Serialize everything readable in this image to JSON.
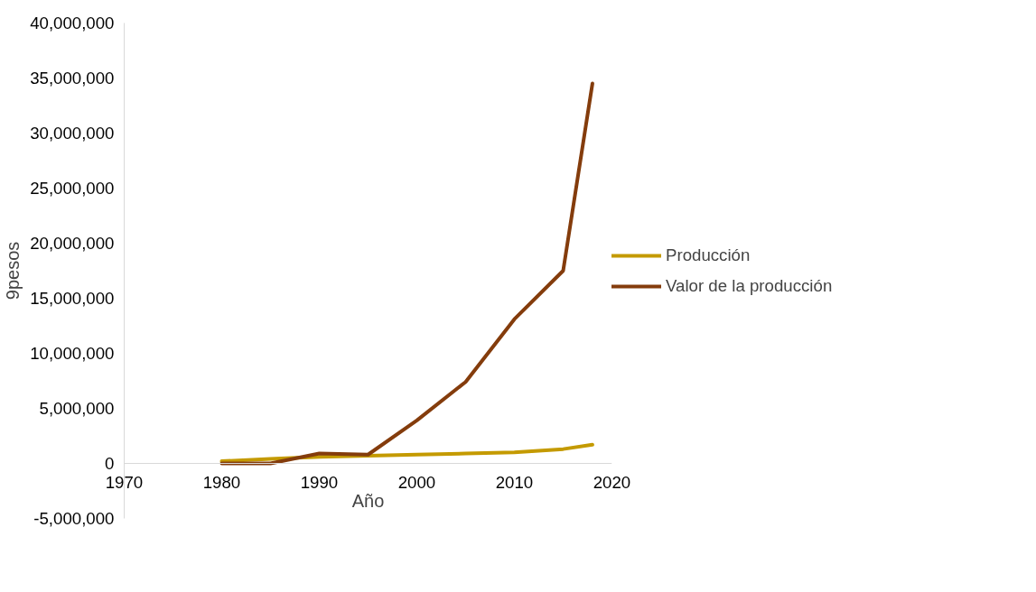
{
  "chart_data": {
    "type": "line",
    "xlabel": "Año",
    "ylabel": "9pesos",
    "x": [
      1980,
      1985,
      1990,
      1995,
      2000,
      2005,
      2010,
      2015,
      2018
    ],
    "series": [
      {
        "name": "Producción",
        "color": "#c49a00",
        "values": [
          200000,
          400000,
          600000,
          700000,
          800000,
          900000,
          1000000,
          1300000,
          1700000
        ]
      },
      {
        "name": "Valor de la producción",
        "color": "#843c0c",
        "values": [
          0,
          0,
          900000,
          800000,
          3900000,
          7400000,
          13100000,
          17500000,
          34500000
        ]
      }
    ],
    "xlim": [
      1970,
      2020
    ],
    "xticks": [
      1970,
      1980,
      1990,
      2000,
      2010,
      2020
    ],
    "ylim": [
      -5000000,
      40000000
    ],
    "yticks": [
      {
        "value": -5000000,
        "label": "-5,000,000"
      },
      {
        "value": 0,
        "label": "0"
      },
      {
        "value": 5000000,
        "label": "5,000,000"
      },
      {
        "value": 10000000,
        "label": "10,000,000"
      },
      {
        "value": 15000000,
        "label": "15,000,000"
      },
      {
        "value": 20000000,
        "label": "20,000,000"
      },
      {
        "value": 25000000,
        "label": "25,000,000"
      },
      {
        "value": 30000000,
        "label": "30,000,000"
      },
      {
        "value": 35000000,
        "label": "35,000,000"
      },
      {
        "value": 40000000,
        "label": "40,000,000"
      }
    ],
    "grid": false,
    "legend": "right",
    "marker": "none",
    "line_style": "solid"
  }
}
